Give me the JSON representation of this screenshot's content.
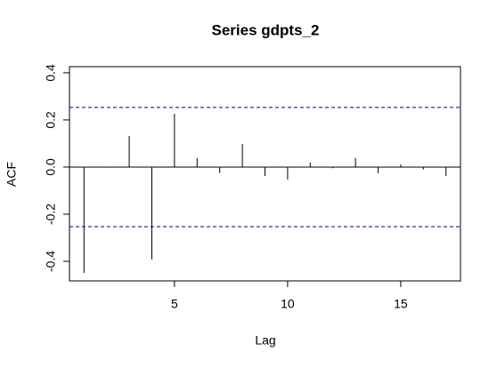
{
  "chart_data": {
    "type": "acf",
    "title": "Series  gdpts_2",
    "xlabel": "Lag",
    "ylabel": "ACF",
    "x": [
      1,
      2,
      3,
      4,
      5,
      6,
      7,
      8,
      9,
      10,
      11,
      12,
      13,
      14,
      15,
      16,
      17
    ],
    "values": [
      -0.449,
      -0.003,
      0.132,
      -0.392,
      0.226,
      0.038,
      -0.025,
      0.098,
      -0.038,
      -0.053,
      0.019,
      -0.005,
      0.038,
      -0.026,
      0.011,
      -0.01,
      -0.038
    ],
    "color": "#000000",
    "conf_lines": [
      0.253,
      -0.253
    ],
    "conf_color": "#00008b",
    "xlim": [
      0.36,
      17.64
    ],
    "ylim": [
      -0.483,
      0.426
    ],
    "xticks": [
      5,
      10,
      15
    ],
    "yticks": [
      -0.4,
      -0.2,
      {
        "value": 0,
        "label": "0.0"
      },
      0.2,
      0.4
    ]
  }
}
